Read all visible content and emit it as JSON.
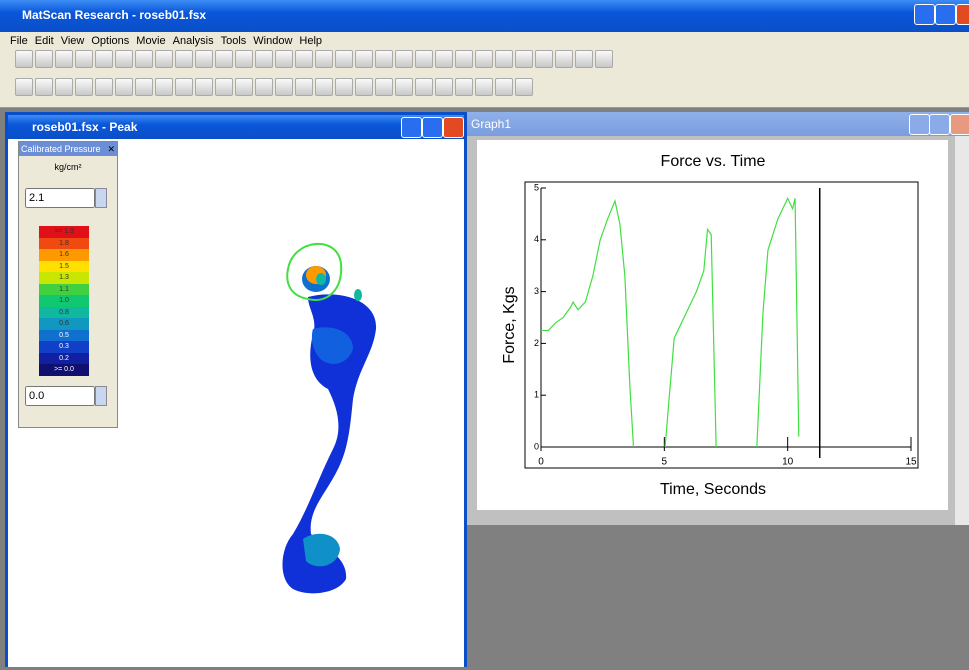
{
  "app_title": "MatScan Research - roseb01.fsx",
  "menu": [
    "File",
    "Edit",
    "View",
    "Options",
    "Movie",
    "Analysis",
    "Tools",
    "Window",
    "Help"
  ],
  "peak_window": {
    "title": "roseb01.fsx - Peak",
    "legend": {
      "title": "Calibrated Pressure",
      "unit": "kg/cm²",
      "max_input": "2.1",
      "min_input": "0.0",
      "levels": [
        {
          "label": ">= 1.9",
          "color": "#e0101a"
        },
        {
          "label": "1.8",
          "color": "#f04a10"
        },
        {
          "label": "1.6",
          "color": "#ff9900"
        },
        {
          "label": "1.5",
          "color": "#ffe000"
        },
        {
          "label": "1.3",
          "color": "#c8e600"
        },
        {
          "label": "1.1",
          "color": "#40d040"
        },
        {
          "label": "1.0",
          "color": "#10c870"
        },
        {
          "label": "0.8",
          "color": "#10b8a0"
        },
        {
          "label": "0.6",
          "color": "#1098c0"
        },
        {
          "label": "0.5",
          "color": "#1070d0"
        },
        {
          "label": "0.3",
          "color": "#1040c8"
        },
        {
          "label": "0.2",
          "color": "#1020a0"
        },
        {
          "label": ">= 0.0",
          "color": "#101070"
        }
      ]
    }
  },
  "graph_window": {
    "title": "Graph1"
  },
  "chart_data": {
    "type": "line",
    "title": "Force vs. Time",
    "x_label": "Time, Seconds",
    "y_label": "Force, Kgs",
    "xlim": [
      0,
      15
    ],
    "ylim": [
      0,
      5
    ],
    "xticks": [
      0,
      5,
      10,
      15
    ],
    "yticks": [
      0,
      1,
      2,
      3,
      4,
      5
    ],
    "cursor_x": 11.3,
    "series": [
      {
        "name": "Force",
        "color": "#40e040",
        "x": [
          0,
          0.3,
          0.6,
          0.9,
          1.2,
          1.3,
          1.5,
          1.8,
          2.1,
          2.4,
          2.7,
          3.0,
          3.2,
          3.4,
          3.6,
          3.75,
          4.4,
          5.03,
          5.4,
          5.8,
          6.3,
          6.6,
          6.75,
          6.9,
          7.1,
          8.0,
          8.75,
          9.0,
          9.2,
          9.6,
          10.0,
          10.2,
          10.3,
          10.45
        ],
        "values": [
          2.25,
          2.25,
          2.4,
          2.5,
          2.7,
          2.8,
          2.65,
          2.8,
          3.3,
          4.0,
          4.4,
          4.75,
          4.3,
          3.3,
          1.2,
          0,
          null,
          0,
          2.1,
          2.5,
          3.0,
          3.4,
          4.2,
          4.1,
          0,
          null,
          0,
          2.6,
          3.8,
          4.4,
          4.8,
          4.6,
          4.8,
          0.2
        ]
      }
    ]
  }
}
